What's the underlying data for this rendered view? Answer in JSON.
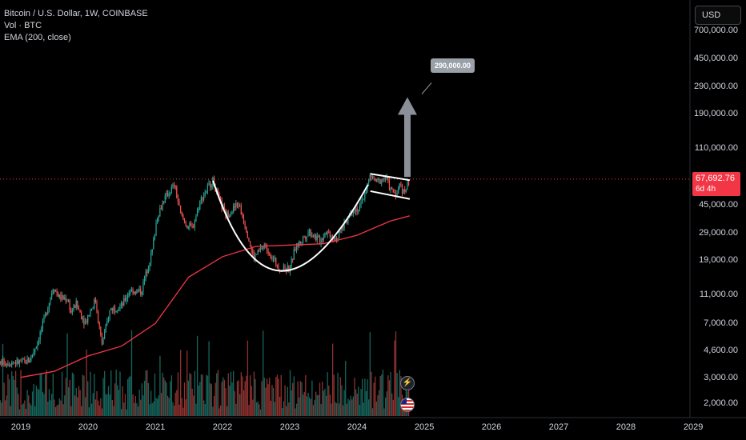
{
  "legend": {
    "symbol": "Bitcoin / U.S. Dollar, 1W, COINBASE",
    "volume": "Vol · BTC",
    "ema": "EMA (200, close)"
  },
  "currency": "USD",
  "current_price": "67,692.76",
  "countdown": "6d 4h",
  "target_label": "290,000.00",
  "colors": {
    "background": "#000000",
    "candle_up": "#26a69a",
    "candle_down": "#ef5350",
    "ema": "#f23645",
    "price_line": "#f23645",
    "annotation": "#ffffff",
    "arrow": "#9aa0a8"
  },
  "icons": [
    "lightning-icon",
    "us-flag-icon"
  ],
  "chart_data": {
    "type": "candlestick",
    "title": "Bitcoin / U.S. Dollar, 1W, COINBASE",
    "y_scale": "log",
    "y_ticks": [
      700000,
      450000,
      290000,
      190000,
      110000,
      67692.76,
      45000,
      29000,
      19000,
      11000,
      7000,
      4600,
      3000,
      2000
    ],
    "y_tick_labels": [
      "700,000.00",
      "450,000.00",
      "290,000.00",
      "190,000.00",
      "110,000.00",
      "45,000.00",
      "29,000.00",
      "19,000.00",
      "11,000.00",
      "7,000.00",
      "4,600.00",
      "3,000.00",
      "2,000.00"
    ],
    "x_tick_labels": [
      "2019",
      "2020",
      "2021",
      "2022",
      "2023",
      "2024",
      "2025",
      "2026",
      "2027",
      "2028",
      "2029"
    ],
    "price_series": [
      [
        "2019-01-01",
        3800
      ],
      [
        "2019-02-15",
        3900
      ],
      [
        "2019-04-01",
        5200
      ],
      [
        "2019-05-15",
        8000
      ],
      [
        "2019-06-26",
        12500
      ],
      [
        "2019-08-01",
        10500
      ],
      [
        "2019-09-15",
        10200
      ],
      [
        "2019-10-01",
        8300
      ],
      [
        "2019-10-28",
        9500
      ],
      [
        "2019-12-15",
        7100
      ],
      [
        "2020-02-10",
        10200
      ],
      [
        "2020-03-16",
        5000
      ],
      [
        "2020-05-01",
        8800
      ],
      [
        "2020-07-01",
        9200
      ],
      [
        "2020-08-15",
        11800
      ],
      [
        "2020-10-15",
        11500
      ],
      [
        "2020-11-15",
        16000
      ],
      [
        "2020-12-15",
        22000
      ],
      [
        "2021-01-10",
        38000
      ],
      [
        "2021-02-21",
        50000
      ],
      [
        "2021-04-14",
        62000
      ],
      [
        "2021-05-20",
        38000
      ],
      [
        "2021-06-20",
        33000
      ],
      [
        "2021-07-20",
        31000
      ],
      [
        "2021-09-01",
        48000
      ],
      [
        "2021-10-20",
        62000
      ],
      [
        "2021-11-10",
        66000
      ],
      [
        "2021-12-15",
        48000
      ],
      [
        "2022-01-20",
        38000
      ],
      [
        "2022-03-28",
        46000
      ],
      [
        "2022-05-10",
        31000
      ],
      [
        "2022-06-18",
        19500
      ],
      [
        "2022-08-15",
        24000
      ],
      [
        "2022-10-01",
        19500
      ],
      [
        "2022-11-10",
        16500
      ],
      [
        "2022-12-31",
        16600
      ],
      [
        "2023-02-01",
        23000
      ],
      [
        "2023-04-15",
        30000
      ],
      [
        "2023-06-15",
        25500
      ],
      [
        "2023-07-15",
        30000
      ],
      [
        "2023-09-15",
        26500
      ],
      [
        "2023-10-25",
        34000
      ],
      [
        "2023-12-10",
        43000
      ],
      [
        "2024-01-15",
        42000
      ],
      [
        "2024-02-28",
        62000
      ],
      [
        "2024-03-14",
        71000
      ],
      [
        "2024-04-20",
        64000
      ],
      [
        "2024-06-05",
        70000
      ],
      [
        "2024-07-05",
        56000
      ],
      [
        "2024-08-05",
        54000
      ],
      [
        "2024-08-25",
        64000
      ],
      [
        "2024-09-08",
        54000
      ],
      [
        "2024-10-14",
        67692.76
      ]
    ],
    "ema_200": [
      [
        "2019-01-01",
        3000
      ],
      [
        "2019-07-01",
        3300
      ],
      [
        "2020-01-01",
        4200
      ],
      [
        "2020-07-01",
        4900
      ],
      [
        "2021-01-01",
        7000
      ],
      [
        "2021-07-01",
        14500
      ],
      [
        "2022-01-01",
        20000
      ],
      [
        "2022-07-01",
        23500
      ],
      [
        "2023-01-01",
        24000
      ],
      [
        "2023-07-01",
        24500
      ],
      [
        "2024-01-01",
        28000
      ],
      [
        "2024-07-01",
        35000
      ],
      [
        "2024-10-14",
        38000
      ]
    ],
    "annotations": {
      "cup_curve": [
        [
          "2021-11-10",
          66000
        ],
        [
          "2022-11-15",
          16000
        ],
        [
          "2024-03-01",
          62000
        ]
      ],
      "flag_upper": [
        [
          "2024-03-14",
          73500
        ],
        [
          "2024-10-14",
          66500
        ]
      ],
      "flag_lower": [
        [
          "2024-03-14",
          56000
        ],
        [
          "2024-10-14",
          49500
        ]
      ],
      "target_arrow": [
        [
          "2024-10-01",
          70000
        ],
        [
          "2024-10-01",
          245000
        ]
      ],
      "target_value": 290000
    }
  }
}
